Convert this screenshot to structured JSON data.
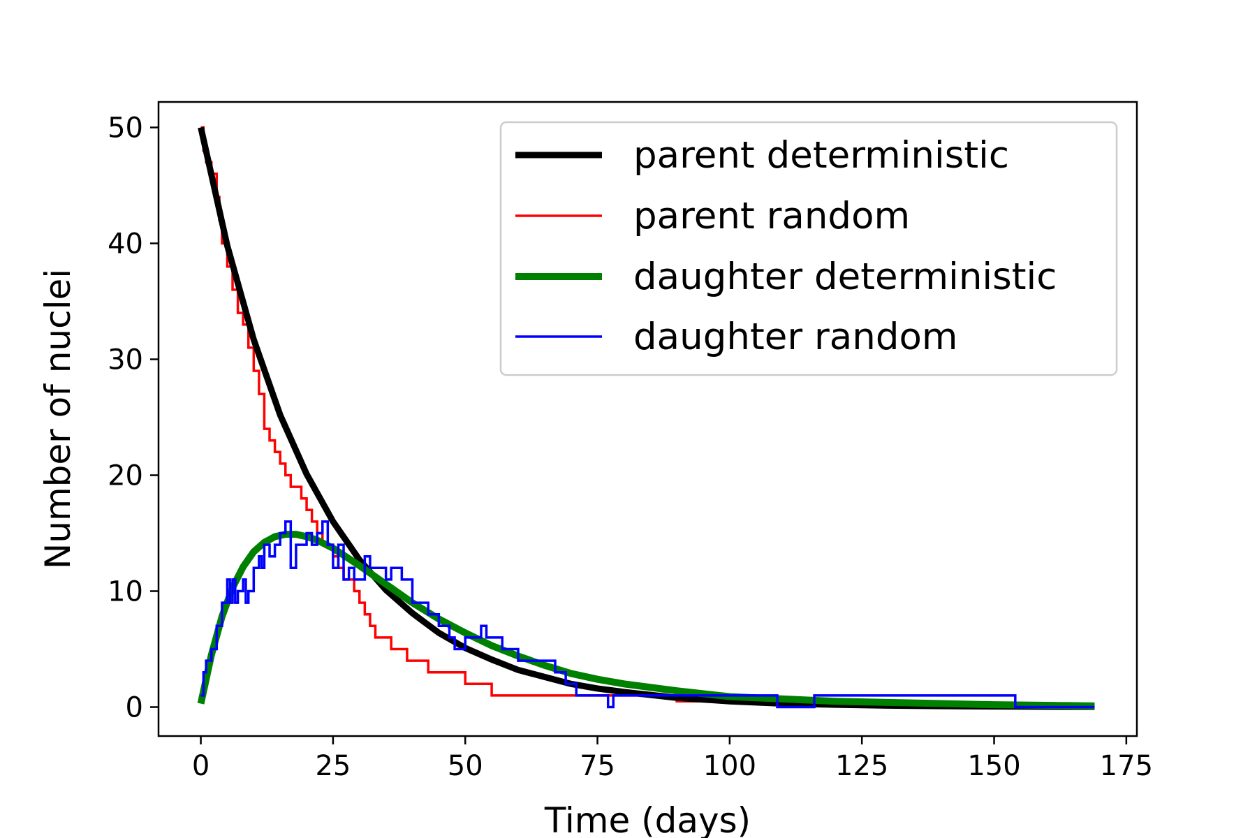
{
  "chart_data": {
    "type": "line",
    "xlabel": "Time (days)",
    "ylabel": "Number of nuclei",
    "xlim": [
      -8,
      177
    ],
    "ylim": [
      -2.5,
      52.2
    ],
    "xticks": [
      0,
      25,
      50,
      75,
      100,
      125,
      150,
      175
    ],
    "yticks": [
      0,
      10,
      20,
      30,
      40,
      50
    ],
    "grid": false,
    "legend_position": "top-right",
    "series": [
      {
        "name": "parent deterministic",
        "color": "#000000",
        "style": "line",
        "x": [
          0,
          5,
          10,
          15,
          20,
          25,
          30,
          35,
          40,
          45,
          50,
          55,
          60,
          65,
          70,
          75,
          80,
          90,
          100,
          110,
          120,
          130,
          140,
          150,
          160,
          169
        ],
        "y": [
          50,
          39.8,
          31.7,
          25.2,
          20.1,
          16.0,
          12.7,
          10.1,
          8.1,
          6.4,
          5.1,
          4.1,
          3.2,
          2.6,
          2.0,
          1.6,
          1.3,
          0.8,
          0.5,
          0.3,
          0.2,
          0.13,
          0.08,
          0.05,
          0.03,
          0.02
        ]
      },
      {
        "name": "parent random",
        "color": "#ff0000",
        "style": "step",
        "x": [
          0,
          0.5,
          1,
          2,
          3,
          3.5,
          4,
          5,
          6,
          7,
          8,
          9,
          10,
          11,
          12,
          13,
          14,
          15,
          16,
          17,
          19,
          20,
          21,
          22,
          23,
          25,
          26,
          27,
          29,
          30,
          31,
          32,
          33,
          36,
          39,
          43,
          50,
          55,
          60,
          70,
          78,
          90,
          110
        ],
        "y": [
          50,
          48,
          47,
          46,
          44,
          42,
          40,
          38,
          36,
          34,
          33,
          31,
          29,
          27,
          24,
          23,
          22,
          21,
          20,
          19,
          18,
          17,
          16,
          15,
          14,
          13,
          12,
          11,
          10,
          9,
          8,
          7,
          6,
          5,
          4,
          3,
          2,
          1,
          1,
          1,
          1,
          0.5,
          0
        ]
      },
      {
        "name": "daughter deterministic",
        "color": "#008000",
        "style": "line",
        "x": [
          0,
          2,
          4,
          6,
          8,
          10,
          12,
          14,
          16,
          18,
          20,
          22,
          25,
          30,
          35,
          40,
          45,
          50,
          55,
          60,
          65,
          70,
          75,
          80,
          90,
          100,
          110,
          120,
          130,
          140,
          150,
          160,
          169
        ],
        "y": [
          0.3,
          4.5,
          7.8,
          10.3,
          12.1,
          13.4,
          14.2,
          14.7,
          14.9,
          14.9,
          14.7,
          14.4,
          13.7,
          12.2,
          10.6,
          9.0,
          7.6,
          6.4,
          5.3,
          4.4,
          3.6,
          2.9,
          2.4,
          2.0,
          1.4,
          0.9,
          0.7,
          0.5,
          0.4,
          0.3,
          0.2,
          0.15,
          0.1
        ]
      },
      {
        "name": "daughter random",
        "color": "#0000ff",
        "style": "step",
        "x": [
          0,
          0.5,
          1,
          2,
          3,
          4,
          5,
          5.5,
          6,
          6.5,
          7,
          8,
          8.5,
          9,
          10,
          11,
          11.5,
          12,
          13,
          14,
          15,
          16,
          17,
          18,
          20,
          21,
          22,
          23,
          24,
          25,
          26,
          27,
          28,
          29,
          31,
          32,
          35,
          36,
          38,
          40,
          43,
          45,
          47,
          48,
          50,
          53,
          54,
          57,
          60,
          65,
          67,
          69,
          71,
          73,
          77,
          78,
          80,
          90,
          100,
          109,
          116,
          140,
          154,
          169
        ],
        "y": [
          1,
          3,
          4,
          5,
          7,
          9,
          11,
          9,
          11,
          9,
          10,
          11,
          9,
          10,
          12,
          13,
          12,
          14,
          13,
          14,
          15,
          16,
          12,
          14,
          15,
          14,
          15,
          16,
          14,
          12,
          14,
          11,
          12,
          11,
          13,
          12,
          11,
          12,
          11,
          9,
          8,
          7,
          6,
          5,
          6,
          7,
          6,
          5,
          4,
          4,
          3,
          2,
          1,
          1,
          0,
          1,
          1,
          1,
          1,
          0,
          1,
          1,
          0,
          0
        ]
      }
    ]
  }
}
